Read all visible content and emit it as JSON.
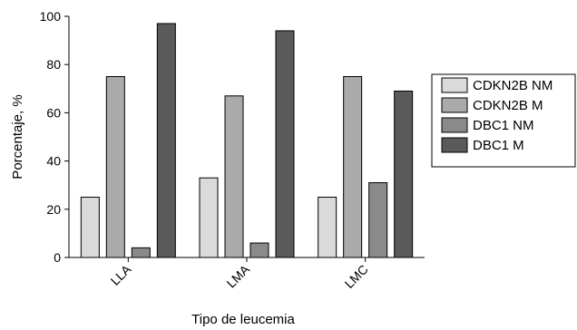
{
  "chart_data": {
    "type": "bar",
    "title": "",
    "xlabel": "Tipo de leucemia",
    "ylabel": "Porcentaje, %",
    "categories": [
      "LLA",
      "LMA",
      "LMC"
    ],
    "ylim": [
      0,
      100
    ],
    "yticks": [
      0,
      20,
      40,
      60,
      80,
      100
    ],
    "grid": false,
    "legend_position": "right",
    "series": [
      {
        "name": "CDKN2B NM",
        "color": "#dadada",
        "values": [
          25,
          33,
          25
        ]
      },
      {
        "name": "CDKN2B M",
        "color": "#aaaaaa",
        "values": [
          75,
          67,
          75
        ]
      },
      {
        "name": "DBC1 NM",
        "color": "#8a8a8a",
        "values": [
          4,
          6,
          31
        ]
      },
      {
        "name": "DBC1 M",
        "color": "#5a5a5a",
        "values": [
          97,
          94,
          69
        ]
      }
    ]
  }
}
